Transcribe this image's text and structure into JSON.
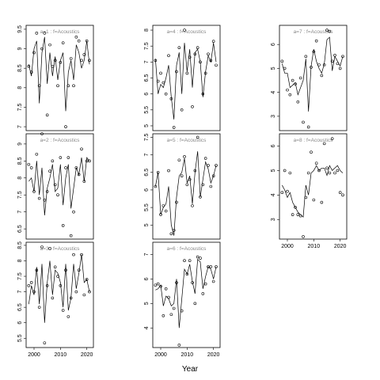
{
  "xlabel": "Year",
  "chart_data": [
    {
      "type": "scatter",
      "title": "a=1 : f=Acoustics",
      "xlim": [
        1997,
        2022.5
      ],
      "ylim": [
        6.9,
        9.6
      ],
      "yticks": [
        7.0,
        7.5,
        8.0,
        8.5,
        9.0,
        9.5
      ],
      "x": [
        1998,
        1999,
        2000,
        2001,
        2002,
        2003,
        2004,
        2005,
        2006,
        2007,
        2008,
        2009,
        2010,
        2011,
        2012,
        2013,
        2014,
        2015,
        2016,
        2017,
        2018,
        2019,
        2020,
        2021
      ],
      "values": [
        8.55,
        8.4,
        8.9,
        9.4,
        8.05,
        9.0,
        9.4,
        7.3,
        9.1,
        8.55,
        8.7,
        8.05,
        8.65,
        9.15,
        7.0,
        8.05,
        8.75,
        8.05,
        9.3,
        9.2,
        8.7,
        8.85,
        9.2,
        8.7
      ],
      "line": [
        8.6,
        8.3,
        9.0,
        9.2,
        7.6,
        8.9,
        9.3,
        8.1,
        8.9,
        8.3,
        8.8,
        8.2,
        8.7,
        8.9,
        7.4,
        8.4,
        8.7,
        8.2,
        9.1,
        8.9,
        8.5,
        8.7,
        9.2,
        8.6
      ]
    },
    {
      "type": "scatter",
      "title": "a=2 : f=Acoustics",
      "xlim": [
        1997,
        2022.5
      ],
      "ylim": [
        6.2,
        9.3
      ],
      "yticks": [
        6.5,
        7.0,
        7.5,
        8.0,
        8.5,
        9.0
      ],
      "x": [
        1998,
        1999,
        2000,
        2001,
        2002,
        2003,
        2004,
        2005,
        2006,
        2007,
        2008,
        2009,
        2010,
        2011,
        2012,
        2013,
        2014,
        2015,
        2016,
        2017,
        2018,
        2019,
        2020,
        2021
      ],
      "values": [
        8.4,
        8.3,
        7.6,
        8.7,
        7.4,
        9.3,
        7.35,
        7.6,
        8.2,
        8.5,
        7.8,
        7.5,
        8.6,
        6.6,
        8.3,
        8.6,
        6.3,
        7.0,
        8.3,
        8.1,
        8.85,
        7.9,
        8.5,
        8.5
      ],
      "line": [
        7.9,
        8.0,
        7.6,
        8.5,
        7.5,
        8.3,
        6.9,
        7.7,
        8.0,
        8.4,
        7.6,
        7.7,
        8.4,
        7.2,
        8.0,
        8.4,
        7.1,
        7.7,
        8.3,
        8.1,
        8.6,
        7.9,
        8.6,
        8.5
      ]
    },
    {
      "type": "scatter",
      "title": "a=3 : f=Acoustics",
      "xlim": [
        1997,
        2022.5
      ],
      "ylim": [
        5.2,
        8.6
      ],
      "yticks": [
        5.5,
        6.0,
        6.5,
        7.0,
        7.5,
        8.0,
        8.5
      ],
      "xticks": [
        2000,
        2010,
        2020
      ],
      "x": [
        1998,
        1999,
        2000,
        2001,
        2002,
        2003,
        2004,
        2005,
        2006,
        2007,
        2008,
        2009,
        2010,
        2011,
        2012,
        2013,
        2014,
        2015,
        2016,
        2017,
        2018,
        2019,
        2020,
        2021
      ],
      "values": [
        7.2,
        7.3,
        7.0,
        7.7,
        6.5,
        8.45,
        5.35,
        7.2,
        8.4,
        6.8,
        7.8,
        7.5,
        7.2,
        6.4,
        7.7,
        6.2,
        6.8,
        8.2,
        7.0,
        7.7,
        8.2,
        6.9,
        7.4,
        7.0
      ],
      "line": [
        6.6,
        7.2,
        6.9,
        7.8,
        6.6,
        7.9,
        6.0,
        7.3,
        8.0,
        6.9,
        7.7,
        7.6,
        7.3,
        6.5,
        7.9,
        6.4,
        6.8,
        7.9,
        7.1,
        7.6,
        8.2,
        7.3,
        7.4,
        7.0
      ]
    },
    {
      "type": "scatter",
      "title": "a=4 : f=Acoustics",
      "xlim": [
        1997,
        2022.5
      ],
      "ylim": [
        4.85,
        8.15
      ],
      "yticks": [
        5.0,
        5.5,
        6.0,
        6.5,
        7.0,
        7.5,
        8.0
      ],
      "x": [
        1998,
        1999,
        2000,
        2001,
        2002,
        2003,
        2004,
        2005,
        2006,
        2007,
        2008,
        2009,
        2010,
        2011,
        2012,
        2013,
        2014,
        2015,
        2016,
        2017,
        2018,
        2019,
        2020,
        2021
      ],
      "values": [
        7.05,
        6.4,
        6.65,
        6.35,
        6.0,
        7.2,
        5.85,
        4.95,
        6.7,
        7.45,
        5.5,
        8.0,
        6.65,
        7.15,
        5.6,
        7.25,
        7.45,
        7.0,
        6.0,
        6.65,
        7.25,
        7.05,
        7.65,
        6.9
      ],
      "line": [
        7.1,
        6.0,
        6.3,
        6.2,
        6.5,
        6.9,
        5.9,
        5.2,
        6.9,
        7.3,
        6.0,
        7.6,
        6.7,
        7.4,
        6.2,
        7.3,
        7.4,
        7.0,
        5.9,
        6.7,
        7.2,
        7.0,
        7.6,
        7.0
      ]
    },
    {
      "type": "scatter",
      "title": "a=5 : f=Acoustics",
      "xlim": [
        1997,
        2022.5
      ],
      "ylim": [
        4.6,
        7.6
      ],
      "yticks": [
        5.0,
        5.5,
        6.0,
        6.5,
        7.0,
        7.5
      ],
      "x": [
        1998,
        1999,
        2000,
        2001,
        2002,
        2003,
        2004,
        2005,
        2006,
        2007,
        2008,
        2009,
        2010,
        2011,
        2012,
        2013,
        2014,
        2015,
        2016,
        2017,
        2018,
        2019,
        2020,
        2021
      ],
      "values": [
        6.1,
        6.5,
        5.3,
        5.55,
        5.4,
        6.55,
        4.75,
        4.85,
        5.65,
        6.85,
        6.4,
        6.95,
        6.15,
        6.3,
        5.55,
        6.55,
        7.5,
        5.8,
        6.15,
        6.9,
        6.7,
        6.1,
        6.4,
        6.7
      ],
      "line": [
        6.1,
        6.5,
        5.3,
        5.5,
        5.6,
        6.1,
        5.0,
        4.7,
        5.8,
        6.4,
        6.5,
        6.9,
        6.2,
        6.4,
        5.6,
        6.5,
        7.1,
        5.8,
        6.3,
        6.8,
        6.6,
        6.2,
        6.4,
        6.7
      ]
    },
    {
      "type": "scatter",
      "title": "a=6 : f=Acoustics",
      "xlim": [
        1997,
        2022.5
      ],
      "ylim": [
        3.2,
        7.5
      ],
      "yticks": [
        4,
        5,
        6,
        7
      ],
      "xticks": [
        2000,
        2010,
        2020
      ],
      "x": [
        1998,
        1999,
        2000,
        2001,
        2002,
        2003,
        2004,
        2005,
        2006,
        2007,
        2008,
        2009,
        2010,
        2011,
        2012,
        2013,
        2014,
        2015,
        2016,
        2017,
        2018,
        2019,
        2020,
        2021
      ],
      "values": [
        5.75,
        5.8,
        5.7,
        4.5,
        5.6,
        5.25,
        4.55,
        4.8,
        5.85,
        3.3,
        4.7,
        6.75,
        6.2,
        6.75,
        5.85,
        5.0,
        6.9,
        6.85,
        5.4,
        5.8,
        6.5,
        6.5,
        5.9,
        6.5
      ],
      "line": [
        5.55,
        5.6,
        5.75,
        4.9,
        5.3,
        5.2,
        4.9,
        5.0,
        6.0,
        4.0,
        5.2,
        6.4,
        6.2,
        6.6,
        5.9,
        5.4,
        6.8,
        6.7,
        5.6,
        6.1,
        6.5,
        6.4,
        6.0,
        6.5
      ]
    },
    {
      "type": "scatter",
      "title": "a=7 : f=Acoustics",
      "xlim": [
        1997,
        2022.5
      ],
      "ylim": [
        2.4,
        6.8
      ],
      "yticks": [
        3,
        4,
        5,
        6
      ],
      "x": [
        1998,
        1999,
        2000,
        2001,
        2002,
        2003,
        2004,
        2005,
        2006,
        2007,
        2008,
        2009,
        2010,
        2011,
        2012,
        2013,
        2014,
        2015,
        2016,
        2017,
        2018,
        2019,
        2020,
        2021
      ],
      "values": [
        5.3,
        5.0,
        4.1,
        3.9,
        4.5,
        4.35,
        3.6,
        4.6,
        2.75,
        5.5,
        2.55,
        5.05,
        5.7,
        6.15,
        5.15,
        4.7,
        5.15,
        6.6,
        6.55,
        5.3,
        5.55,
        5.2,
        5.0,
        5.5
      ],
      "line": [
        5.2,
        4.8,
        4.8,
        4.2,
        4.3,
        4.4,
        3.9,
        4.2,
        4.5,
        5.4,
        3.2,
        5.1,
        5.8,
        5.3,
        5.0,
        4.8,
        5.2,
        6.2,
        6.3,
        4.9,
        5.5,
        5.3,
        5.1,
        5.5
      ]
    },
    {
      "type": "scatter",
      "title": "a=8 : f=Acoustics",
      "xlim": [
        1997,
        2022.5
      ],
      "ylim": [
        2.2,
        6.5
      ],
      "yticks": [
        3,
        4,
        5,
        6
      ],
      "xticks": [
        2000,
        2010,
        2020
      ],
      "x": [
        1998,
        1999,
        2000,
        2001,
        2002,
        2003,
        2004,
        2005,
        2006,
        2007,
        2008,
        2009,
        2010,
        2011,
        2012,
        2013,
        2014,
        2015,
        2016,
        2017,
        2018,
        2019,
        2020,
        2021
      ],
      "values": [
        4.1,
        5.0,
        4.15,
        4.9,
        3.2,
        3.5,
        3.2,
        3.15,
        2.3,
        3.9,
        4.9,
        5.75,
        3.8,
        5.3,
        5.0,
        3.7,
        6.1,
        5.1,
        4.9,
        6.3,
        4.9,
        5.0,
        4.1,
        4.0
      ],
      "line": [
        4.4,
        4.2,
        3.9,
        4.1,
        3.7,
        3.5,
        3.3,
        3.2,
        3.1,
        4.4,
        4.0,
        4.9,
        5.0,
        5.2,
        5.0,
        5.1,
        5.1,
        4.8,
        5.2,
        5.0,
        5.1,
        5.2,
        5.0,
        4.9
      ]
    }
  ]
}
